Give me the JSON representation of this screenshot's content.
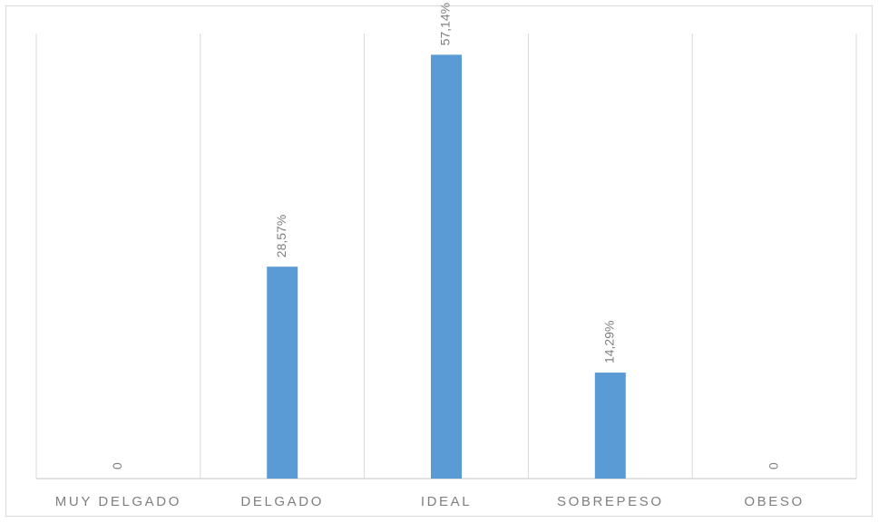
{
  "chart_data": {
    "type": "bar",
    "categories": [
      "MUY DELGADO",
      "DELGADO",
      "IDEAL",
      "SOBREPESO",
      "OBESO"
    ],
    "values": [
      0,
      28.57,
      57.14,
      14.29,
      0
    ],
    "data_labels": [
      "0",
      "28,57%",
      "57,14%",
      "14,29%",
      "0"
    ],
    "title": "",
    "xlabel": "",
    "ylabel": "",
    "ylim": [
      0,
      60
    ],
    "grid": "vertical category dividers",
    "legend": "none",
    "bar_color": "#5b9bd5",
    "data_label_rotation": "vertical"
  }
}
